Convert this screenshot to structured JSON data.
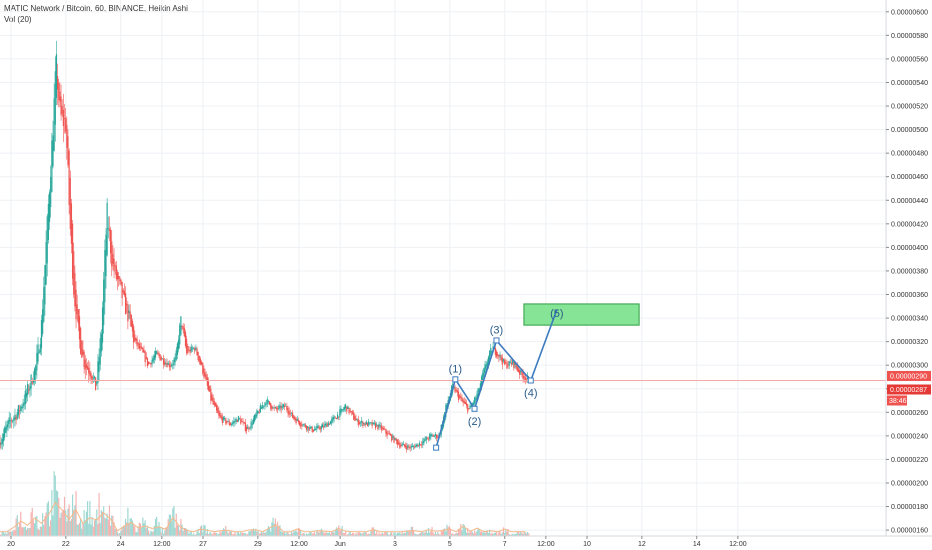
{
  "header": {
    "title": "MATIC Network / Bitcoin, 60, BINANCE, Heikin Ashi",
    "volume_label": "Vol (20)"
  },
  "colors": {
    "up": "#26a69a",
    "down": "#ef5350",
    "wave": "#3d7bbf",
    "target_fill": "#7ee38f",
    "target_border": "#2e9e44",
    "price_line": "#f4a8a8",
    "price_tag": "#ef5350",
    "grid": "#eef1f5",
    "ma": "#f4b98a"
  },
  "chart_data": {
    "type": "candlestick",
    "title": "MATIC Network / Bitcoin, 60, BINANCE, Heikin Ashi",
    "ylim": [
      1.55e-06,
      6.1e-06
    ],
    "xlim": [
      19.6,
      51.9
    ],
    "y_ticks": [
      "0.00000600",
      "0.00000580",
      "0.00000560",
      "0.00000540",
      "0.00000520",
      "0.00000500",
      "0.00000480",
      "0.00000460",
      "0.00000440",
      "0.00000420",
      "0.00000400",
      "0.00000380",
      "0.00000360",
      "0.00000340",
      "0.00000320",
      "0.00000300",
      "0.00000280",
      "0.00000260",
      "0.00000240",
      "0.00000220",
      "0.00000200",
      "0.00000180",
      "0.00000160"
    ],
    "x_ticks": [
      {
        "label": "20",
        "x": 20
      },
      {
        "label": "22",
        "x": 22
      },
      {
        "label": "24",
        "x": 24
      },
      {
        "label": "12:00",
        "x": 25.5
      },
      {
        "label": "27",
        "x": 27
      },
      {
        "label": "29",
        "x": 29
      },
      {
        "label": "12:00",
        "x": 30.5
      },
      {
        "label": "Jun",
        "x": 32
      },
      {
        "label": "3",
        "x": 34
      },
      {
        "label": "5",
        "x": 36
      },
      {
        "label": "7",
        "x": 38
      },
      {
        "label": "12:00",
        "x": 39.5
      },
      {
        "label": "10",
        "x": 41
      },
      {
        "label": "12",
        "x": 43
      },
      {
        "label": "14",
        "x": 45
      },
      {
        "label": "12:00",
        "x": 46.5
      }
    ],
    "path": [
      [
        19.6,
        2.35e-06
      ],
      [
        19.9,
        2.5e-06
      ],
      [
        20.3,
        2.62e-06
      ],
      [
        20.6,
        2.78e-06
      ],
      [
        20.9,
        2.98e-06
      ],
      [
        21.1,
        3.3e-06
      ],
      [
        21.3,
        4.1e-06
      ],
      [
        21.5,
        4.9e-06
      ],
      [
        21.65,
        5.55e-06
      ],
      [
        21.8,
        5.1e-06
      ],
      [
        22.0,
        5.05e-06
      ],
      [
        22.15,
        4.2e-06
      ],
      [
        22.3,
        3.6e-06
      ],
      [
        22.5,
        3.2e-06
      ],
      [
        22.7,
        3e-06
      ],
      [
        22.9,
        2.95e-06
      ],
      [
        23.1,
        2.8e-06
      ],
      [
        23.3,
        3.3e-06
      ],
      [
        23.5,
        4.3e-06
      ],
      [
        23.7,
        3.85e-06
      ],
      [
        23.9,
        3.7e-06
      ],
      [
        24.1,
        3.55e-06
      ],
      [
        24.3,
        3.4e-06
      ],
      [
        24.5,
        3.2e-06
      ],
      [
        24.8,
        3.1e-06
      ],
      [
        25.0,
        3e-06
      ],
      [
        25.3,
        3.1e-06
      ],
      [
        25.5,
        3.05e-06
      ],
      [
        25.8,
        3e-06
      ],
      [
        26.0,
        3.05e-06
      ],
      [
        26.2,
        3.4e-06
      ],
      [
        26.4,
        3.1e-06
      ],
      [
        26.7,
        3.15e-06
      ],
      [
        27.0,
        2.95e-06
      ],
      [
        27.3,
        2.7e-06
      ],
      [
        27.6,
        2.55e-06
      ],
      [
        28.0,
        2.5e-06
      ],
      [
        28.3,
        2.55e-06
      ],
      [
        28.6,
        2.45e-06
      ],
      [
        29.0,
        2.6e-06
      ],
      [
        29.3,
        2.7e-06
      ],
      [
        29.6,
        2.62e-06
      ],
      [
        30.0,
        2.65e-06
      ],
      [
        30.3,
        2.55e-06
      ],
      [
        30.6,
        2.5e-06
      ],
      [
        31.0,
        2.45e-06
      ],
      [
        31.4,
        2.48e-06
      ],
      [
        31.8,
        2.55e-06
      ],
      [
        32.2,
        2.65e-06
      ],
      [
        32.6,
        2.52e-06
      ],
      [
        33.0,
        2.5e-06
      ],
      [
        33.4,
        2.48e-06
      ],
      [
        33.8,
        2.4e-06
      ],
      [
        34.2,
        2.32e-06
      ],
      [
        34.6,
        2.3e-06
      ],
      [
        35.0,
        2.35e-06
      ],
      [
        35.3,
        2.4e-06
      ],
      [
        35.6,
        2.4e-06
      ],
      [
        35.9,
        2.68e-06
      ],
      [
        36.1,
        2.82e-06
      ],
      [
        36.4,
        2.7e-06
      ],
      [
        36.7,
        2.62e-06
      ],
      [
        37.0,
        2.75e-06
      ],
      [
        37.3,
        3e-06
      ],
      [
        37.55,
        3.15e-06
      ],
      [
        37.8,
        3.08e-06
      ],
      [
        38.0,
        3e-06
      ],
      [
        38.3,
        3.02e-06
      ],
      [
        38.6,
        2.92e-06
      ],
      [
        38.9,
        2.87e-06
      ]
    ],
    "volume": {
      "ma_label": "Vol (20)",
      "spikes": [
        [
          20.3,
          28
        ],
        [
          20.8,
          35
        ],
        [
          21.3,
          42
        ],
        [
          21.6,
          60
        ],
        [
          21.9,
          48
        ],
        [
          22.3,
          55
        ],
        [
          22.8,
          38
        ],
        [
          23.3,
          50
        ],
        [
          23.6,
          30
        ],
        [
          24.3,
          28
        ],
        [
          24.8,
          20
        ],
        [
          25.3,
          18
        ],
        [
          25.9,
          30
        ],
        [
          26.2,
          16
        ],
        [
          27.0,
          12
        ],
        [
          27.8,
          10
        ],
        [
          28.8,
          12
        ],
        [
          29.6,
          22
        ],
        [
          30.4,
          10
        ],
        [
          31.3,
          9
        ],
        [
          32.0,
          12
        ],
        [
          33.2,
          8
        ],
        [
          34.6,
          9
        ],
        [
          35.3,
          10
        ],
        [
          35.9,
          12
        ],
        [
          36.5,
          15
        ],
        [
          37.0,
          11
        ],
        [
          37.4,
          8
        ],
        [
          38.0,
          9
        ],
        [
          38.6,
          6
        ]
      ]
    },
    "elliott_wave": {
      "points": [
        {
          "label": "",
          "x": 35.5,
          "y": 2.3e-06
        },
        {
          "label": "(1)",
          "x": 36.2,
          "y": 2.88e-06
        },
        {
          "label": "(2)",
          "x": 36.9,
          "y": 2.63e-06
        },
        {
          "label": "(3)",
          "x": 37.7,
          "y": 3.21e-06
        },
        {
          "label": "(4)",
          "x": 38.95,
          "y": 2.87e-06
        },
        {
          "label": "(5)",
          "x": 39.9,
          "y": 3.47e-06
        }
      ]
    },
    "target_zone": {
      "x0": 38.7,
      "x1": 42.9,
      "y0": 3.34e-06,
      "y1": 3.52e-06,
      "label": "(5)"
    },
    "last_price": "0.00000290",
    "current_price": "0.00000287",
    "countdown": "38:46"
  }
}
